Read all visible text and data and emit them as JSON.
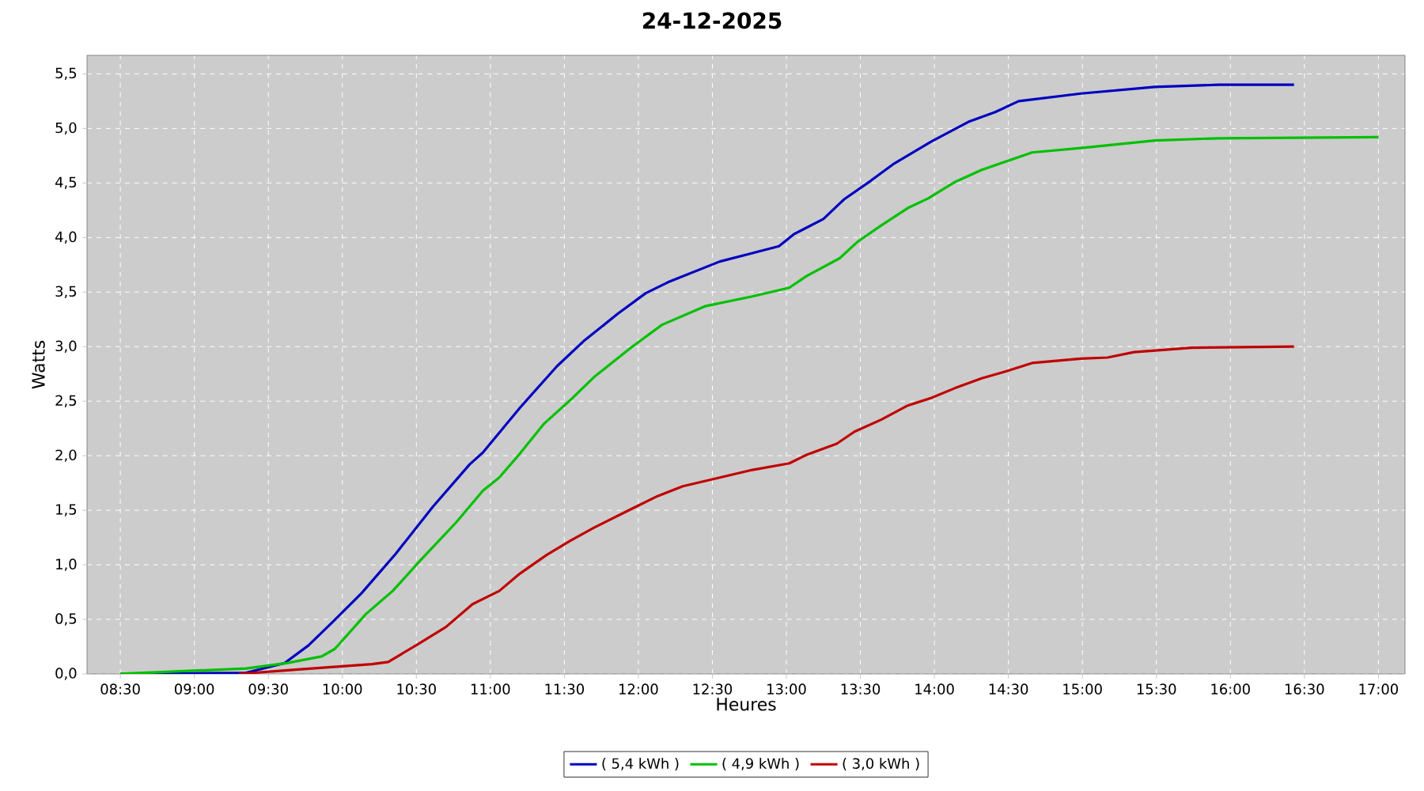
{
  "chart_data": {
    "type": "line",
    "title": "24-12-2025",
    "xlabel": "Heures",
    "ylabel": "Watts",
    "xlim": [
      8.275,
      17.18
    ],
    "ylim": [
      0,
      5.67
    ],
    "xticks": [
      {
        "value": 8.5,
        "label": "08:30"
      },
      {
        "value": 9,
        "label": "09:00"
      },
      {
        "value": 9.5,
        "label": "09:30"
      },
      {
        "value": 10,
        "label": "10:00"
      },
      {
        "value": 10.5,
        "label": "10:30"
      },
      {
        "value": 11,
        "label": "11:00"
      },
      {
        "value": 11.5,
        "label": "11:30"
      },
      {
        "value": 12,
        "label": "12:00"
      },
      {
        "value": 12.5,
        "label": "12:30"
      },
      {
        "value": 13,
        "label": "13:00"
      },
      {
        "value": 13.5,
        "label": "13:30"
      },
      {
        "value": 14,
        "label": "14:00"
      },
      {
        "value": 14.5,
        "label": "14:30"
      },
      {
        "value": 15,
        "label": "15:00"
      },
      {
        "value": 15.5,
        "label": "15:30"
      },
      {
        "value": 16,
        "label": "16:00"
      },
      {
        "value": 16.5,
        "label": "16:30"
      },
      {
        "value": 17,
        "label": "17:00"
      }
    ],
    "yticks": [
      {
        "value": 0,
        "label": "0,0"
      },
      {
        "value": 0.5,
        "label": "0,5"
      },
      {
        "value": 1,
        "label": "1,0"
      },
      {
        "value": 1.5,
        "label": "1,5"
      },
      {
        "value": 2,
        "label": "2,0"
      },
      {
        "value": 2.5,
        "label": "2,5"
      },
      {
        "value": 3,
        "label": "3,0"
      },
      {
        "value": 3.5,
        "label": "3,5"
      },
      {
        "value": 4,
        "label": "4,0"
      },
      {
        "value": 4.5,
        "label": "4,5"
      },
      {
        "value": 5,
        "label": "5,0"
      },
      {
        "value": 5.5,
        "label": "5,5"
      }
    ],
    "grid": true,
    "legend": "bottom",
    "series": [
      {
        "name": "( 5,4 kWh )",
        "color": "#0000c0",
        "x": [
          8.5,
          9.35,
          9.61,
          9.77,
          9.93,
          10.13,
          10.36,
          10.61,
          10.86,
          10.95,
          11.2,
          11.45,
          11.63,
          11.86,
          12.05,
          12.2,
          12.55,
          12.75,
          12.95,
          13.05,
          13.25,
          13.39,
          13.57,
          13.73,
          13.98,
          14.23,
          14.41,
          14.57,
          14.99,
          15.49,
          15.92,
          16.43
        ],
        "values": [
          0.0,
          0.01,
          0.1,
          0.26,
          0.47,
          0.74,
          1.1,
          1.53,
          1.92,
          2.03,
          2.44,
          2.82,
          3.05,
          3.3,
          3.49,
          3.59,
          3.78,
          3.85,
          3.92,
          4.03,
          4.17,
          4.35,
          4.52,
          4.68,
          4.88,
          5.06,
          5.15,
          5.25,
          5.32,
          5.38,
          5.4,
          5.4
        ]
      },
      {
        "name": "( 4,9 kWh )",
        "color": "#00c000",
        "x": [
          8.5,
          9.35,
          9.63,
          9.86,
          9.95,
          10.16,
          10.34,
          10.52,
          10.77,
          10.95,
          11.06,
          11.2,
          11.36,
          11.54,
          11.7,
          11.95,
          12.16,
          12.45,
          12.77,
          13.02,
          13.14,
          13.36,
          13.48,
          13.64,
          13.82,
          13.96,
          14.14,
          14.32,
          14.66,
          14.99,
          15.49,
          15.92,
          17.0
        ],
        "values": [
          0.0,
          0.05,
          0.1,
          0.16,
          0.23,
          0.55,
          0.76,
          1.03,
          1.39,
          1.68,
          1.8,
          2.02,
          2.29,
          2.51,
          2.72,
          2.99,
          3.2,
          3.37,
          3.46,
          3.54,
          3.65,
          3.81,
          3.96,
          4.11,
          4.27,
          4.36,
          4.51,
          4.62,
          4.78,
          4.82,
          4.89,
          4.91,
          4.92
        ]
      },
      {
        "name": "( 3,0 kWh )",
        "color": "#c00000",
        "x": [
          9.3,
          9.7,
          10.2,
          10.31,
          10.52,
          10.7,
          10.88,
          11.06,
          11.2,
          11.38,
          11.54,
          11.7,
          11.95,
          12.13,
          12.3,
          12.55,
          12.77,
          13.02,
          13.14,
          13.34,
          13.46,
          13.64,
          13.82,
          13.98,
          14.14,
          14.32,
          14.5,
          14.66,
          14.99,
          15.17,
          15.35,
          15.74,
          16.43
        ],
        "values": [
          0.0,
          0.04,
          0.09,
          0.11,
          0.28,
          0.43,
          0.64,
          0.76,
          0.92,
          1.09,
          1.22,
          1.34,
          1.51,
          1.63,
          1.72,
          1.8,
          1.87,
          1.93,
          2.01,
          2.11,
          2.22,
          2.33,
          2.46,
          2.53,
          2.62,
          2.71,
          2.78,
          2.85,
          2.89,
          2.9,
          2.95,
          2.99,
          3.0
        ]
      }
    ]
  }
}
